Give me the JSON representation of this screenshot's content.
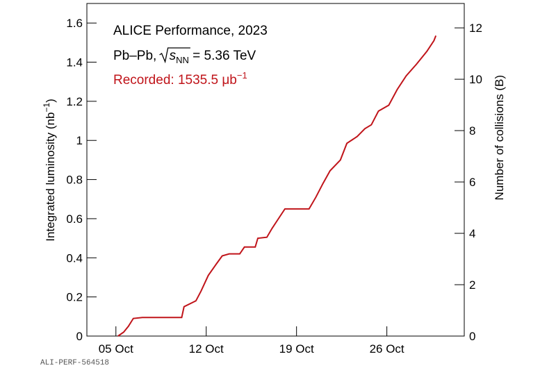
{
  "chart_data": {
    "type": "line",
    "x": [
      5.16,
      5.6,
      5.97,
      6.35,
      7.05,
      10.1,
      10.28,
      11.2,
      11.6,
      12.16,
      12.8,
      13.24,
      13.78,
      14.6,
      14.96,
      15.8,
      16.0,
      16.7,
      17.1,
      17.5,
      18.1,
      19.97,
      20.5,
      21.05,
      21.6,
      22.4,
      22.9,
      23.7,
      24.3,
      24.8,
      25.35,
      26.15,
      26.8,
      27.5,
      28.3,
      29.1,
      29.65,
      29.8
    ],
    "values": [
      0,
      0.02,
      0.05,
      0.09,
      0.095,
      0.095,
      0.15,
      0.18,
      0.23,
      0.31,
      0.37,
      0.41,
      0.42,
      0.42,
      0.455,
      0.455,
      0.5,
      0.505,
      0.55,
      0.59,
      0.65,
      0.65,
      0.71,
      0.78,
      0.845,
      0.9,
      0.985,
      1.02,
      1.06,
      1.08,
      1.15,
      1.18,
      1.26,
      1.33,
      1.39,
      1.455,
      1.51,
      1.5355
    ],
    "color": "#c0141a",
    "xlim": [
      2.75,
      32
    ],
    "xticks": [
      {
        "value": 5,
        "label": "05 Oct"
      },
      {
        "value": 12,
        "label": "12 Oct"
      },
      {
        "value": 19,
        "label": "19 Oct"
      },
      {
        "value": 26,
        "label": "26 Oct"
      }
    ],
    "ylim": [
      0,
      1.7
    ],
    "yticks": [
      0,
      0.2,
      0.4,
      0.6,
      0.8,
      1,
      1.2,
      1.4,
      1.6
    ],
    "y2lim": [
      0,
      12.95
    ],
    "y2ticks": [
      0,
      2,
      4,
      6,
      8,
      10,
      12
    ],
    "ylabel": {
      "text": "Integrated luminosity (nb",
      "sup": "−1",
      "end": ")"
    },
    "y2label": "Number of collisions (B)",
    "annotations": {
      "title": "ALICE Performance, 2023",
      "system": {
        "prefix": "Pb–Pb, ",
        "radicand": "s",
        "sub": "NN",
        "suffix": " = 5.36 TeV"
      },
      "recorded": {
        "text": "Recorded: 1535.5 μb",
        "sup": "−1"
      }
    }
  },
  "footer": "ALI-PERF-564518"
}
